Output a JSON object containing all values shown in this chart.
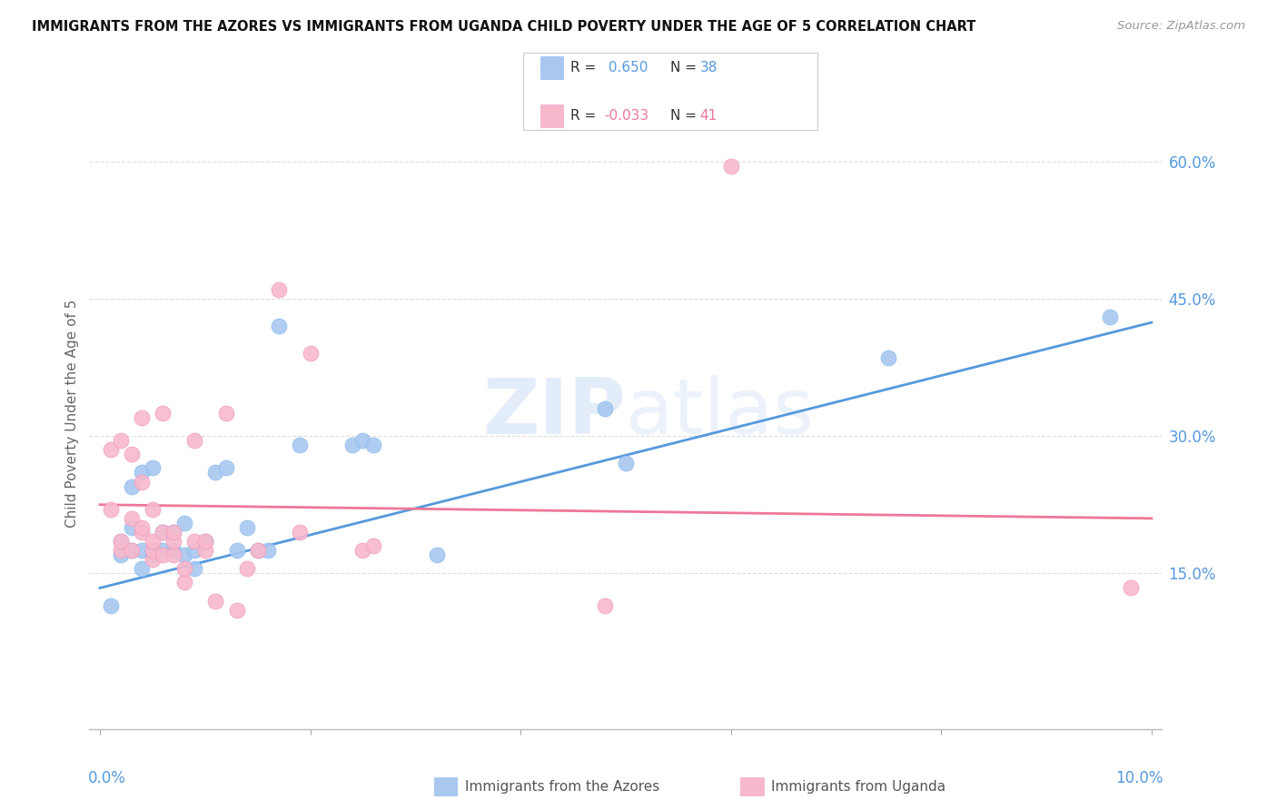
{
  "title": "IMMIGRANTS FROM THE AZORES VS IMMIGRANTS FROM UGANDA CHILD POVERTY UNDER THE AGE OF 5 CORRELATION CHART",
  "source": "Source: ZipAtlas.com",
  "ylabel": "Child Poverty Under the Age of 5",
  "ylim": [
    -0.02,
    0.67
  ],
  "xlim": [
    -0.001,
    0.101
  ],
  "yticks": [
    0.15,
    0.3,
    0.45,
    0.6
  ],
  "ytick_labels": [
    "15.0%",
    "30.0%",
    "45.0%",
    "60.0%"
  ],
  "background_color": "#ffffff",
  "watermark": "ZIPatlas",
  "azores_color": "#a8c8f0",
  "uganda_color": "#f8b8cc",
  "azores_line_color": "#5599dd",
  "uganda_line_color": "#ee7799",
  "azores_x": [
    0.001,
    0.002,
    0.002,
    0.003,
    0.003,
    0.003,
    0.004,
    0.004,
    0.004,
    0.005,
    0.005,
    0.005,
    0.006,
    0.006,
    0.007,
    0.007,
    0.008,
    0.008,
    0.009,
    0.009,
    0.01,
    0.011,
    0.012,
    0.013,
    0.014,
    0.015,
    0.016,
    0.017,
    0.019,
    0.024,
    0.025,
    0.026,
    0.032,
    0.048,
    0.05,
    0.075,
    0.096
  ],
  "azores_y": [
    0.115,
    0.17,
    0.185,
    0.175,
    0.2,
    0.245,
    0.155,
    0.175,
    0.26,
    0.17,
    0.175,
    0.265,
    0.175,
    0.195,
    0.175,
    0.195,
    0.17,
    0.205,
    0.155,
    0.175,
    0.185,
    0.26,
    0.265,
    0.175,
    0.2,
    0.175,
    0.175,
    0.42,
    0.29,
    0.29,
    0.295,
    0.29,
    0.17,
    0.33,
    0.27,
    0.385,
    0.43
  ],
  "uganda_x": [
    0.001,
    0.001,
    0.002,
    0.002,
    0.002,
    0.003,
    0.003,
    0.003,
    0.004,
    0.004,
    0.004,
    0.004,
    0.005,
    0.005,
    0.005,
    0.005,
    0.006,
    0.006,
    0.006,
    0.007,
    0.007,
    0.007,
    0.008,
    0.008,
    0.009,
    0.009,
    0.01,
    0.01,
    0.011,
    0.012,
    0.013,
    0.014,
    0.015,
    0.017,
    0.019,
    0.02,
    0.025,
    0.026,
    0.048,
    0.06,
    0.098
  ],
  "uganda_y": [
    0.22,
    0.285,
    0.175,
    0.185,
    0.295,
    0.175,
    0.21,
    0.28,
    0.195,
    0.2,
    0.25,
    0.32,
    0.165,
    0.175,
    0.185,
    0.22,
    0.17,
    0.195,
    0.325,
    0.17,
    0.185,
    0.195,
    0.14,
    0.155,
    0.185,
    0.295,
    0.175,
    0.185,
    0.12,
    0.325,
    0.11,
    0.155,
    0.175,
    0.46,
    0.195,
    0.39,
    0.175,
    0.18,
    0.115,
    0.595,
    0.135
  ],
  "azores_reg": [
    0.134,
    0.424
  ],
  "uganda_reg": [
    0.225,
    0.21
  ]
}
